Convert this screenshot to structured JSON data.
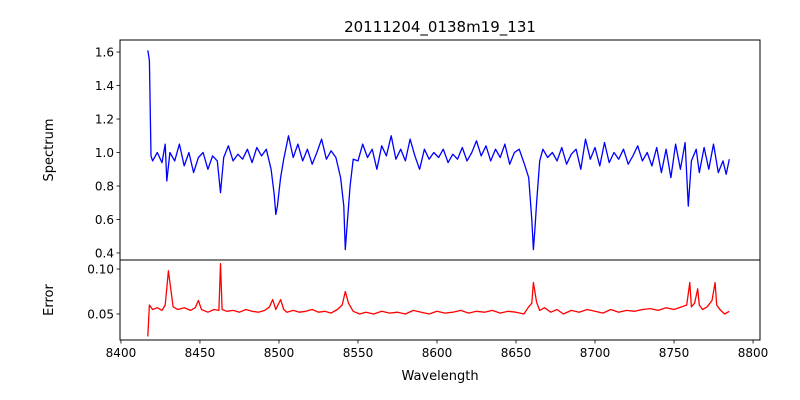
{
  "chart_data": [
    {
      "type": "line",
      "panel": "top",
      "title": "20111204_0138m19_131",
      "xlabel": "",
      "ylabel": "Spectrum",
      "xlim": [
        8399.4,
        8804.4
      ],
      "ylim": [
        0.358,
        1.672
      ],
      "yticks": [
        0.4,
        0.6,
        0.8,
        1.0,
        1.2,
        1.4,
        1.6
      ],
      "ytick_labels": [
        "0.4",
        "0.6",
        "0.8",
        "1.0",
        "1.2",
        "1.4",
        "1.6"
      ],
      "grid": false,
      "color": "#0000ff",
      "series": [
        {
          "name": "Spectrum",
          "x": [
            8417,
            8418,
            8419,
            8420,
            8423,
            8426,
            8428,
            8429,
            8431,
            8434,
            8437,
            8440,
            8443,
            8446,
            8449,
            8452,
            8455,
            8458,
            8461,
            8463,
            8465,
            8468,
            8471,
            8474,
            8477,
            8480,
            8483,
            8486,
            8489,
            8492,
            8495,
            8497,
            8498,
            8499,
            8501,
            8503,
            8506,
            8509,
            8512,
            8515,
            8518,
            8521,
            8524,
            8527,
            8530,
            8533,
            8536,
            8539,
            8541,
            8542,
            8543,
            8545,
            8547,
            8550,
            8553,
            8556,
            8559,
            8562,
            8565,
            8568,
            8571,
            8574,
            8577,
            8580,
            8583,
            8586,
            8589,
            8592,
            8595,
            8598,
            8601,
            8604,
            8607,
            8610,
            8613,
            8616,
            8619,
            8622,
            8625,
            8628,
            8631,
            8634,
            8637,
            8640,
            8643,
            8646,
            8649,
            8652,
            8655,
            8658,
            8660,
            8661,
            8662,
            8663,
            8665,
            8667,
            8670,
            8673,
            8676,
            8679,
            8682,
            8685,
            8688,
            8691,
            8694,
            8697,
            8700,
            8703,
            8706,
            8709,
            8712,
            8715,
            8718,
            8721,
            8724,
            8727,
            8730,
            8733,
            8736,
            8739,
            8742,
            8745,
            8748,
            8751,
            8754,
            8757,
            8759,
            8761,
            8764,
            8766,
            8769,
            8772,
            8775,
            8778,
            8781,
            8783,
            8785
          ],
          "y": [
            1.61,
            1.55,
            0.98,
            0.95,
            1.0,
            0.94,
            1.05,
            0.83,
            1.0,
            0.95,
            1.05,
            0.92,
            1.0,
            0.88,
            0.97,
            1.0,
            0.9,
            0.98,
            0.95,
            0.76,
            0.97,
            1.04,
            0.95,
            0.99,
            0.96,
            1.02,
            0.94,
            1.03,
            0.98,
            1.02,
            0.9,
            0.75,
            0.63,
            0.68,
            0.85,
            0.96,
            1.1,
            0.97,
            1.05,
            0.95,
            1.02,
            0.93,
            1.0,
            1.08,
            0.96,
            1.01,
            0.97,
            0.85,
            0.68,
            0.42,
            0.55,
            0.8,
            0.96,
            0.95,
            1.05,
            0.97,
            1.02,
            0.9,
            1.04,
            0.98,
            1.1,
            0.96,
            1.02,
            0.95,
            1.08,
            0.98,
            0.9,
            1.02,
            0.96,
            1.0,
            0.97,
            1.02,
            0.94,
            0.99,
            0.96,
            1.03,
            0.95,
            1.0,
            1.07,
            0.98,
            1.04,
            0.95,
            1.02,
            0.97,
            1.05,
            0.93,
            1.0,
            1.02,
            0.94,
            0.85,
            0.6,
            0.42,
            0.55,
            0.7,
            0.95,
            1.02,
            0.97,
            1.0,
            0.95,
            1.03,
            0.93,
            0.99,
            1.02,
            0.9,
            1.08,
            0.96,
            1.03,
            0.92,
            1.06,
            0.94,
            1.0,
            0.96,
            1.02,
            0.93,
            0.98,
            1.04,
            0.95,
            1.0,
            0.92,
            1.03,
            0.88,
            1.02,
            0.85,
            1.05,
            0.9,
            1.06,
            0.68,
            0.95,
            1.02,
            0.88,
            1.03,
            0.9,
            1.05,
            0.88,
            0.95,
            0.87,
            0.96
          ]
        }
      ]
    },
    {
      "type": "line",
      "panel": "bottom",
      "title": "",
      "xlabel": "Wavelength",
      "ylabel": "Error",
      "xlim": [
        8399.4,
        8804.4
      ],
      "ylim": [
        0.0211,
        0.11
      ],
      "xticks": [
        8400,
        8450,
        8500,
        8550,
        8600,
        8650,
        8700,
        8750,
        8800
      ],
      "xtick_labels": [
        "8400",
        "8450",
        "8500",
        "8550",
        "8600",
        "8650",
        "8700",
        "8750",
        "8800"
      ],
      "yticks": [
        0.05,
        0.1
      ],
      "ytick_labels": [
        "0.05",
        "0.10"
      ],
      "grid": false,
      "color": "#ff0000",
      "series": [
        {
          "name": "Error",
          "x": [
            8417,
            8418,
            8420,
            8423,
            8426,
            8428,
            8430,
            8433,
            8436,
            8440,
            8444,
            8447,
            8449,
            8451,
            8455,
            8459,
            8462,
            8463,
            8464,
            8467,
            8471,
            8475,
            8479,
            8483,
            8487,
            8491,
            8494,
            8496,
            8498,
            8501,
            8503,
            8505,
            8509,
            8513,
            8517,
            8521,
            8525,
            8529,
            8533,
            8537,
            8540,
            8542,
            8544,
            8547,
            8551,
            8555,
            8560,
            8565,
            8570,
            8575,
            8580,
            8585,
            8590,
            8595,
            8600,
            8605,
            8610,
            8615,
            8620,
            8625,
            8630,
            8635,
            8640,
            8645,
            8650,
            8655,
            8658,
            8660,
            8661,
            8663,
            8665,
            8668,
            8672,
            8676,
            8680,
            8685,
            8690,
            8695,
            8700,
            8705,
            8710,
            8715,
            8720,
            8725,
            8730,
            8735,
            8740,
            8745,
            8750,
            8755,
            8758,
            8760,
            8761,
            8763,
            8765,
            8766,
            8768,
            8771,
            8774,
            8776,
            8777,
            8779,
            8782,
            8785
          ],
          "y": [
            0.025,
            0.06,
            0.055,
            0.057,
            0.054,
            0.06,
            0.098,
            0.058,
            0.055,
            0.057,
            0.054,
            0.057,
            0.065,
            0.055,
            0.052,
            0.055,
            0.054,
            0.106,
            0.055,
            0.053,
            0.054,
            0.052,
            0.055,
            0.053,
            0.052,
            0.054,
            0.058,
            0.066,
            0.055,
            0.066,
            0.055,
            0.052,
            0.054,
            0.052,
            0.053,
            0.055,
            0.052,
            0.053,
            0.051,
            0.055,
            0.06,
            0.075,
            0.062,
            0.053,
            0.05,
            0.052,
            0.05,
            0.053,
            0.051,
            0.052,
            0.05,
            0.054,
            0.052,
            0.05,
            0.053,
            0.051,
            0.052,
            0.054,
            0.051,
            0.053,
            0.052,
            0.054,
            0.051,
            0.053,
            0.052,
            0.05,
            0.058,
            0.062,
            0.085,
            0.063,
            0.054,
            0.057,
            0.052,
            0.055,
            0.05,
            0.054,
            0.052,
            0.055,
            0.053,
            0.051,
            0.055,
            0.052,
            0.054,
            0.053,
            0.055,
            0.056,
            0.054,
            0.057,
            0.055,
            0.058,
            0.06,
            0.085,
            0.058,
            0.062,
            0.078,
            0.06,
            0.055,
            0.058,
            0.065,
            0.085,
            0.06,
            0.055,
            0.05,
            0.053
          ]
        }
      ]
    }
  ]
}
